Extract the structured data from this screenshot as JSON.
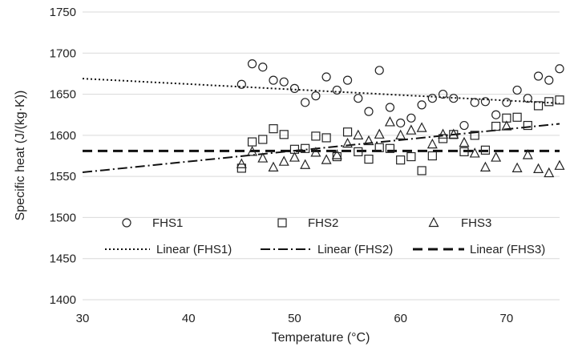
{
  "chart_data": {
    "type": "scatter",
    "xlabel": "Temperature (°C)",
    "ylabel": "Specific heat (J/(kg·K))",
    "xlim": [
      30,
      75
    ],
    "ylim": [
      1400,
      1750
    ],
    "xticks": [
      30,
      40,
      50,
      60,
      70
    ],
    "yticks": [
      1400,
      1450,
      1500,
      1550,
      1600,
      1650,
      1700,
      1750
    ],
    "grid": "horizontal",
    "legend_position": "bottom",
    "series": [
      {
        "name": "FHS1",
        "marker": "circle",
        "points": [
          [
            45,
            1662
          ],
          [
            46,
            1687
          ],
          [
            47,
            1683
          ],
          [
            48,
            1667
          ],
          [
            49,
            1665
          ],
          [
            50,
            1657
          ],
          [
            51,
            1640
          ],
          [
            52,
            1648
          ],
          [
            53,
            1671
          ],
          [
            54,
            1655
          ],
          [
            55,
            1667
          ],
          [
            56,
            1645
          ],
          [
            57,
            1629
          ],
          [
            58,
            1679
          ],
          [
            59,
            1634
          ],
          [
            60,
            1615
          ],
          [
            61,
            1621
          ],
          [
            62,
            1637
          ],
          [
            63,
            1645
          ],
          [
            64,
            1650
          ],
          [
            65,
            1645
          ],
          [
            66,
            1612
          ],
          [
            67,
            1640
          ],
          [
            68,
            1641
          ],
          [
            69,
            1625
          ],
          [
            70,
            1640
          ],
          [
            71,
            1655
          ],
          [
            72,
            1645
          ],
          [
            73,
            1672
          ],
          [
            74,
            1667
          ],
          [
            75,
            1681
          ]
        ]
      },
      {
        "name": "FHS2",
        "marker": "square",
        "points": [
          [
            45,
            1560
          ],
          [
            46,
            1592
          ],
          [
            47,
            1595
          ],
          [
            48,
            1608
          ],
          [
            49,
            1601
          ],
          [
            50,
            1583
          ],
          [
            51,
            1584
          ],
          [
            52,
            1599
          ],
          [
            53,
            1597
          ],
          [
            54,
            1574
          ],
          [
            55,
            1604
          ],
          [
            56,
            1580
          ],
          [
            57,
            1571
          ],
          [
            58,
            1585
          ],
          [
            59,
            1584
          ],
          [
            60,
            1570
          ],
          [
            61,
            1574
          ],
          [
            62,
            1557
          ],
          [
            63,
            1575
          ],
          [
            64,
            1596
          ],
          [
            65,
            1601
          ],
          [
            66,
            1580
          ],
          [
            67,
            1600
          ],
          [
            68,
            1582
          ],
          [
            69,
            1611
          ],
          [
            70,
            1621
          ],
          [
            71,
            1622
          ],
          [
            72,
            1612
          ],
          [
            73,
            1636
          ],
          [
            74,
            1641
          ],
          [
            75,
            1643
          ]
        ]
      },
      {
        "name": "FHS3",
        "marker": "triangle",
        "points": [
          [
            45,
            1565
          ],
          [
            46,
            1580
          ],
          [
            47,
            1572
          ],
          [
            48,
            1561
          ],
          [
            49,
            1568
          ],
          [
            50,
            1573
          ],
          [
            51,
            1564
          ],
          [
            52,
            1579
          ],
          [
            53,
            1570
          ],
          [
            54,
            1576
          ],
          [
            55,
            1590
          ],
          [
            56,
            1600
          ],
          [
            57,
            1593
          ],
          [
            58,
            1601
          ],
          [
            59,
            1616
          ],
          [
            60,
            1600
          ],
          [
            61,
            1606
          ],
          [
            62,
            1609
          ],
          [
            63,
            1589
          ],
          [
            64,
            1601
          ],
          [
            65,
            1601
          ],
          [
            66,
            1591
          ],
          [
            67,
            1578
          ],
          [
            68,
            1561
          ],
          [
            69,
            1573
          ],
          [
            70,
            1611
          ],
          [
            71,
            1560
          ],
          [
            72,
            1576
          ],
          [
            73,
            1559
          ],
          [
            74,
            1554
          ],
          [
            75,
            1563
          ]
        ]
      }
    ],
    "trendlines": [
      {
        "name": "Linear (FHS1)",
        "style": "dotted",
        "x": [
          30,
          75
        ],
        "y": [
          1669,
          1639
        ]
      },
      {
        "name": "Linear (FHS2)",
        "style": "dashdot",
        "x": [
          30,
          75
        ],
        "y": [
          1555,
          1614
        ]
      },
      {
        "name": "Linear (FHS3)",
        "style": "dashed",
        "x": [
          30,
          75
        ],
        "y": [
          1581,
          1581
        ]
      }
    ]
  }
}
